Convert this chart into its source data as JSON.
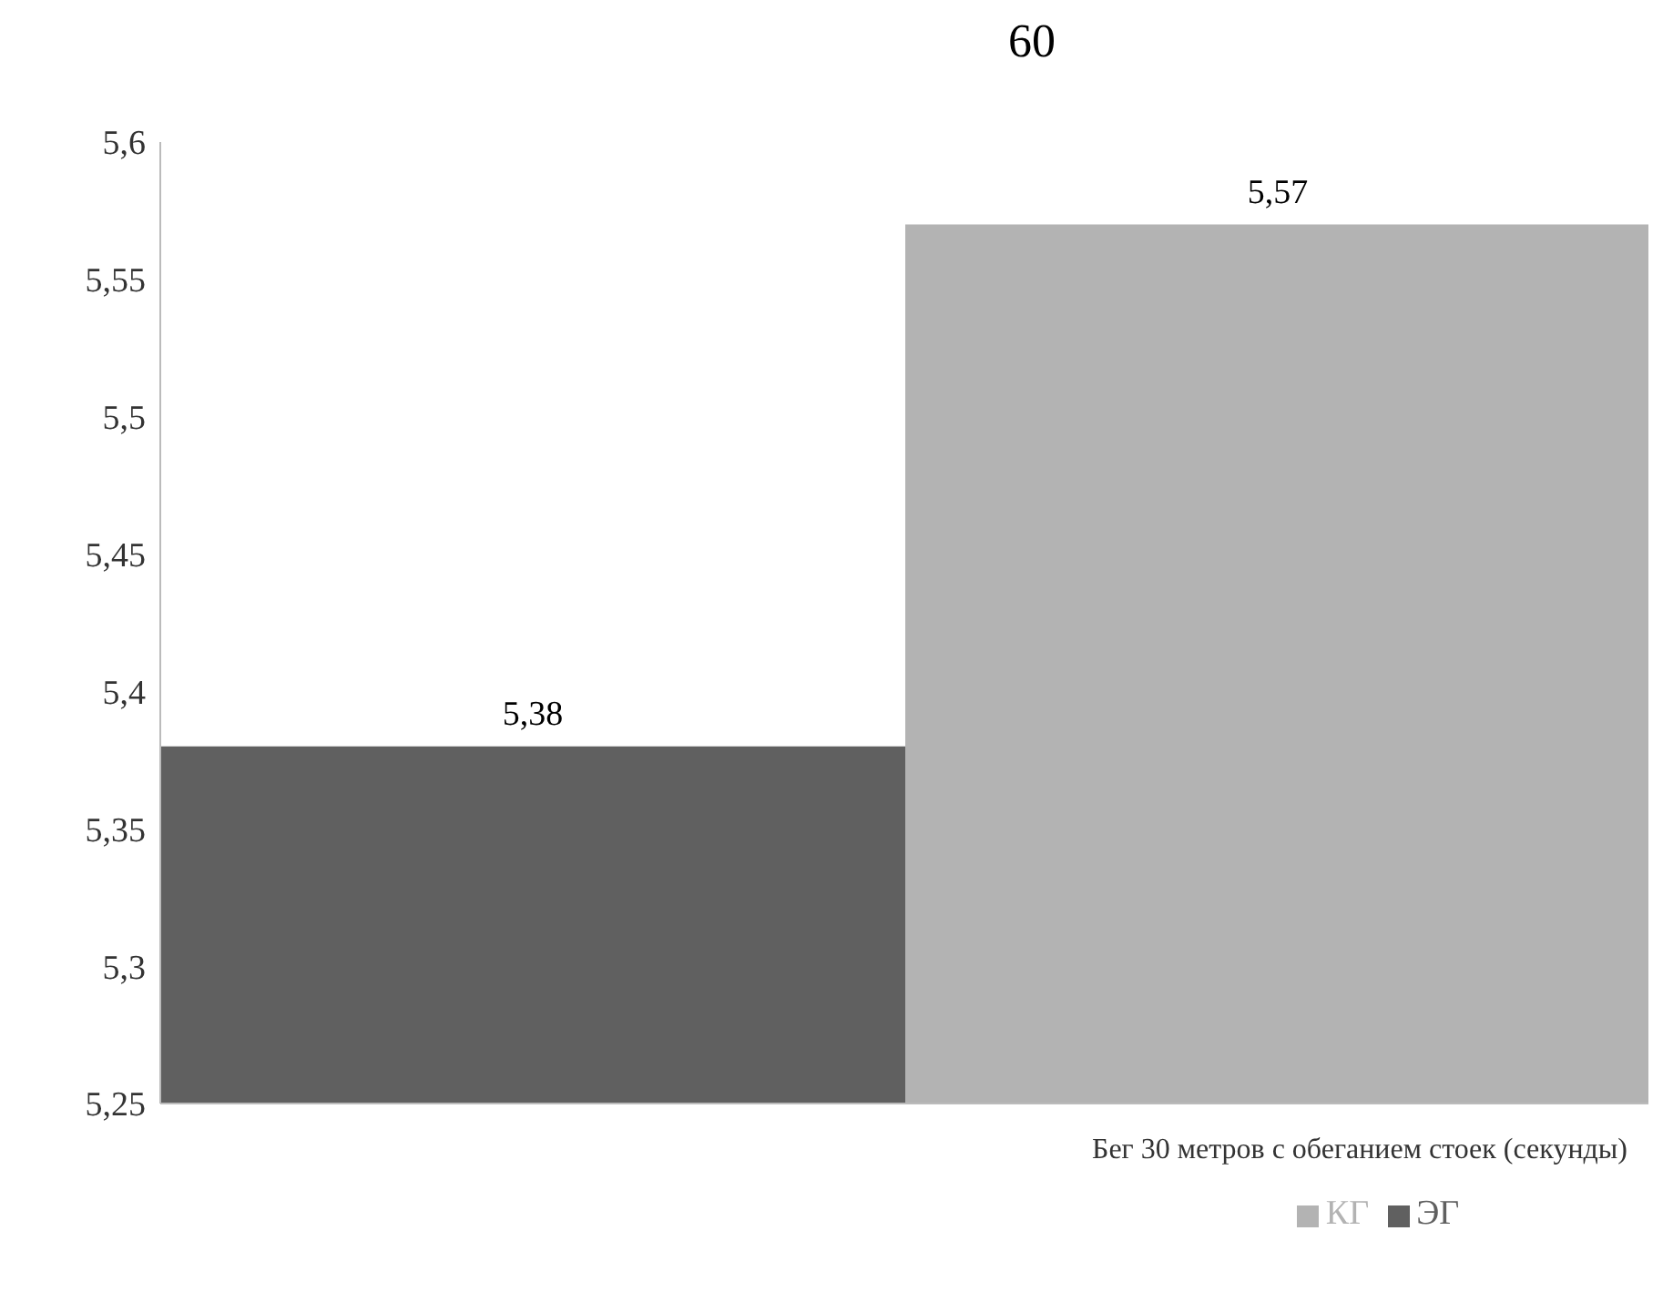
{
  "chart_data": {
    "type": "bar",
    "title": "60",
    "categories": [
      "Бег 30 метров с обеганием стоек (секунды)"
    ],
    "series": [
      {
        "name": "ЭГ",
        "color": "#606060",
        "values": [
          5.38
        ],
        "value_labels": [
          "5,38"
        ]
      },
      {
        "name": "КГ",
        "color": "#b3b3b3",
        "values": [
          5.57
        ],
        "value_labels": [
          "5,57"
        ]
      }
    ],
    "ylim": [
      5.25,
      5.6
    ],
    "yticks": [
      {
        "value": 5.25,
        "label": "5,25"
      },
      {
        "value": 5.3,
        "label": "5,3"
      },
      {
        "value": 5.35,
        "label": "5,35"
      },
      {
        "value": 5.4,
        "label": "5,4"
      },
      {
        "value": 5.45,
        "label": "5,45"
      },
      {
        "value": 5.5,
        "label": "5,5"
      },
      {
        "value": 5.55,
        "label": "5,55"
      },
      {
        "value": 5.6,
        "label": "5,6"
      }
    ],
    "grid": false,
    "legend": "bottom"
  }
}
